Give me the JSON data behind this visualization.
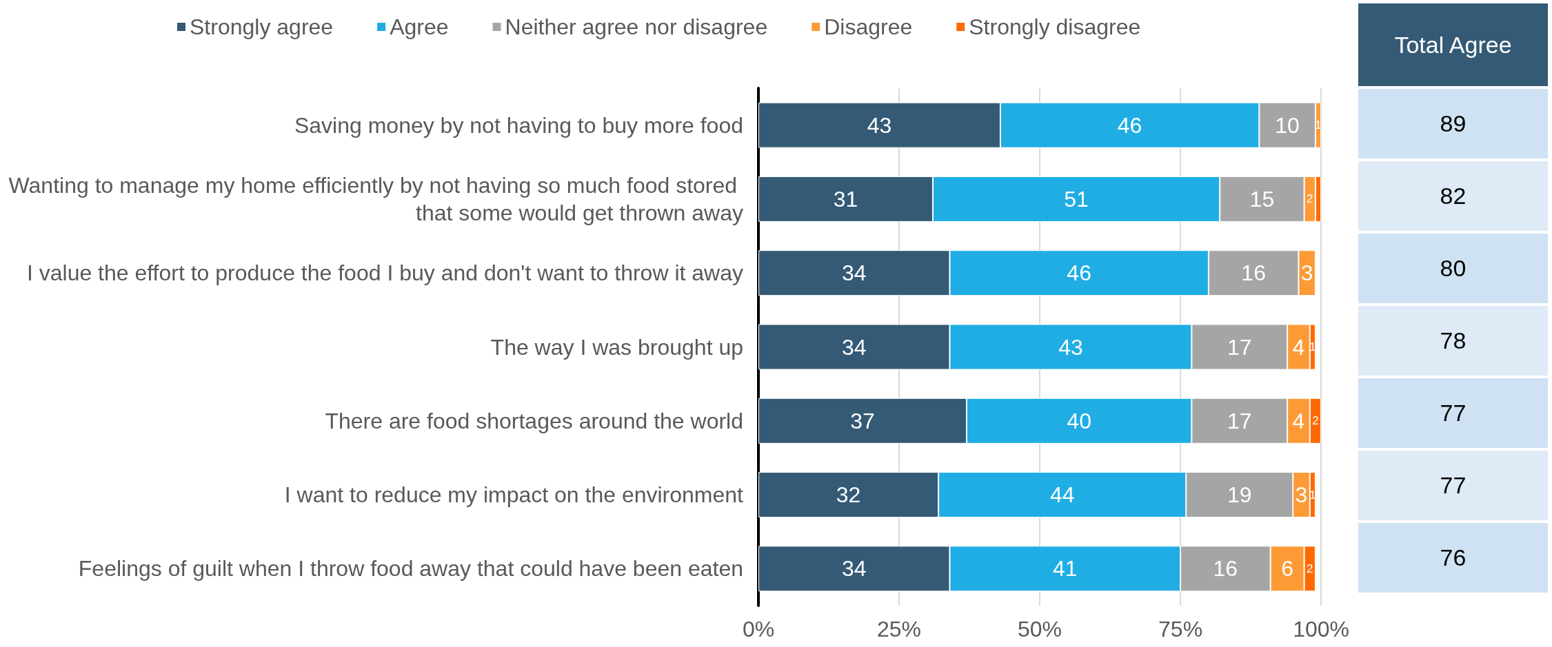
{
  "chart_data": {
    "type": "bar",
    "orientation": "horizontal",
    "stacked": true,
    "categories": [
      "Saving money by not having to buy more food",
      "Wanting to manage my home efficiently by not having so much food stored that some would get thrown away",
      "I value the effort to produce the food I buy and don't want to throw it away",
      "The way I was brought up",
      "There are food shortages around the world",
      "I want to reduce my impact on the environment",
      "Feelings of guilt when I throw food away that could have been eaten"
    ],
    "series": [
      {
        "name": "Strongly agree",
        "color": "#345a75",
        "values": [
          43,
          31,
          34,
          34,
          37,
          32,
          34
        ],
        "value_labels": [
          "43",
          "31",
          "34",
          "34",
          "37",
          "32",
          "34"
        ]
      },
      {
        "name": "Agree",
        "color": "#1fade4",
        "values": [
          46,
          51,
          46,
          43,
          40,
          44,
          41
        ],
        "value_labels": [
          "46",
          "51",
          "46",
          "43",
          "40",
          "44",
          "41"
        ]
      },
      {
        "name": "Neither agree nor disagree",
        "color": "#a5a5a5",
        "values": [
          10,
          15,
          16,
          17,
          17,
          19,
          16
        ],
        "value_labels": [
          "10",
          "15",
          "16",
          "17",
          "17",
          "19",
          "16"
        ]
      },
      {
        "name": "Disagree",
        "color": "#fd9a35",
        "values": [
          1,
          2,
          3,
          4,
          4,
          3,
          6
        ],
        "value_labels": [
          "1",
          "2",
          "3",
          "4",
          "4",
          "3",
          "6"
        ]
      },
      {
        "name": "Strongly disagree",
        "color": "#ff6a00",
        "values": [
          0,
          1,
          0,
          1,
          2,
          1,
          2
        ],
        "value_labels": [
          null,
          null,
          null,
          "1",
          "2",
          "1",
          "2"
        ]
      }
    ],
    "xlim": [
      0,
      100
    ],
    "xticks": [
      {
        "value": 0,
        "label": "0%"
      },
      {
        "value": 25,
        "label": "25%"
      },
      {
        "value": 50,
        "label": "50%"
      },
      {
        "value": 75,
        "label": "75%"
      },
      {
        "value": 100,
        "label": "100%"
      }
    ],
    "grid": "x",
    "legend": "top",
    "annotations": [
      "Total Agree",
      "89",
      "82",
      "80",
      "78",
      "77",
      "77",
      "76"
    ]
  }
}
